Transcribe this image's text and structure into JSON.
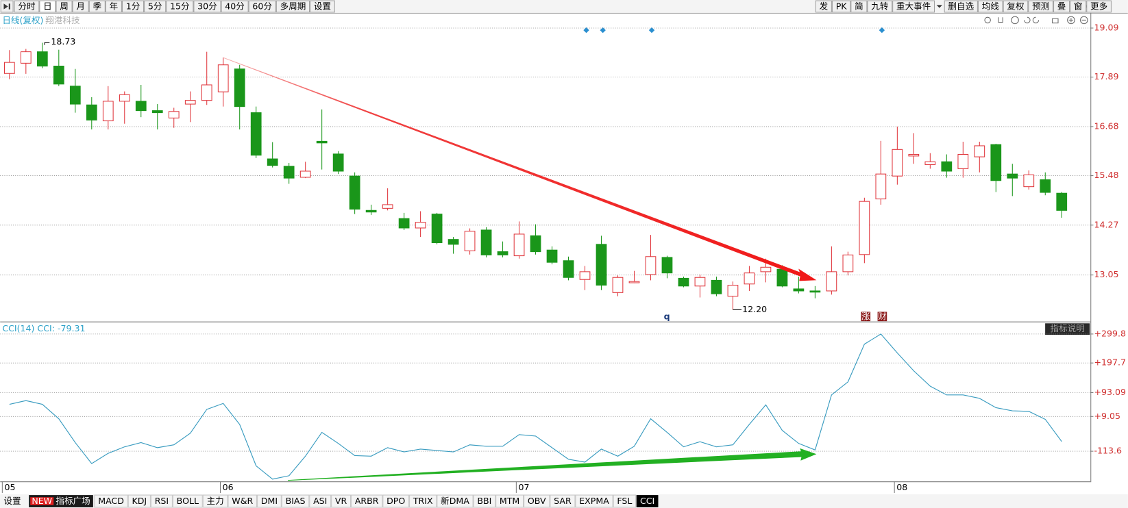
{
  "toolbar": {
    "left": [
      "分时",
      "日",
      "周",
      "月",
      "季",
      "年",
      "1分",
      "5分",
      "15分",
      "30分",
      "40分",
      "60分",
      "多周期",
      "设置"
    ],
    "right": [
      "发",
      "PK",
      "简",
      "九转",
      "重大事件",
      "删自选",
      "均线",
      "复权",
      "预测",
      "叠",
      "窗",
      "更多"
    ]
  },
  "stock_label": {
    "mode": "日线(复权)",
    "name": "翔港科技"
  },
  "indicator_button": "指标说明",
  "markers": {
    "q": "q",
    "events": [
      "涨",
      "财"
    ]
  },
  "tabs": {
    "settings": "设置",
    "new_badge": "NEW",
    "square": "指标广场",
    "items": [
      "MACD",
      "KDJ",
      "RSI",
      "BOLL",
      "主力",
      "W&R",
      "DMI",
      "BIAS",
      "ASI",
      "VR",
      "ARBR",
      "DPO",
      "TRIX",
      "新DMA",
      "BBI",
      "MTM",
      "OBV",
      "SAR",
      "EXPMA",
      "FSL",
      "CCI"
    ]
  },
  "chart_data": [
    {
      "type": "candlestick",
      "up_color": "#e0363c",
      "down_color": "#1a961a",
      "grid": true,
      "open": [
        17.98,
        18.23,
        18.51,
        18.16,
        17.67,
        17.21,
        16.82,
        17.3,
        17.3,
        17.07,
        16.89,
        17.23,
        17.32,
        17.53,
        18.09,
        17.02,
        15.89,
        15.71,
        15.44,
        16.32,
        16.01,
        15.47,
        14.63,
        14.68,
        14.43,
        14.2,
        14.54,
        13.92,
        13.64,
        14.15,
        13.62,
        13.52,
        14.01,
        13.66,
        13.4,
        12.94,
        13.8,
        12.62,
        12.86,
        13.06,
        13.48,
        12.97,
        12.78,
        12.92,
        12.53,
        12.83,
        13.13,
        13.19,
        12.71,
        12.66,
        12.66,
        13.13,
        13.55,
        14.91,
        15.47,
        15.96,
        15.75,
        15.82,
        15.65,
        15.94,
        16.24,
        15.52,
        15.21,
        15.38,
        15.05
      ],
      "close": [
        18.25,
        18.51,
        18.16,
        17.72,
        17.23,
        16.84,
        17.3,
        17.46,
        17.07,
        17.02,
        17.05,
        17.32,
        17.7,
        18.19,
        17.17,
        15.98,
        15.73,
        15.42,
        15.59,
        16.28,
        15.59,
        14.66,
        14.59,
        14.77,
        14.2,
        14.34,
        13.84,
        13.8,
        14.12,
        13.54,
        13.54,
        14.05,
        13.62,
        13.36,
        12.99,
        13.13,
        12.8,
        12.99,
        12.89,
        13.5,
        13.1,
        12.78,
        12.99,
        12.59,
        12.8,
        13.1,
        13.24,
        12.78,
        12.66,
        12.63,
        13.13,
        13.54,
        14.85,
        15.52,
        16.12,
        16.0,
        15.82,
        15.59,
        16.0,
        16.21,
        15.36,
        15.42,
        15.5,
        15.07,
        14.63
      ],
      "high": [
        18.55,
        18.58,
        18.73,
        18.56,
        18.09,
        17.4,
        17.67,
        17.54,
        17.7,
        17.23,
        17.14,
        17.54,
        18.51,
        18.37,
        18.19,
        17.17,
        16.3,
        15.79,
        15.82,
        17.1,
        16.08,
        15.56,
        14.77,
        15.17,
        14.57,
        14.61,
        14.57,
        13.98,
        14.19,
        14.22,
        13.87,
        14.36,
        14.29,
        13.75,
        13.5,
        13.27,
        14.01,
        13.04,
        13.15,
        14.03,
        13.52,
        13.01,
        13.06,
        13.01,
        12.89,
        13.27,
        13.45,
        13.29,
        13.01,
        12.78,
        13.75,
        13.62,
        14.94,
        16.33,
        16.68,
        16.52,
        16.03,
        16.0,
        16.31,
        16.31,
        16.26,
        15.77,
        15.61,
        15.56,
        15.08
      ],
      "low": [
        17.84,
        17.97,
        18.11,
        17.67,
        17.02,
        16.61,
        16.61,
        16.75,
        16.91,
        16.61,
        16.65,
        16.79,
        17.21,
        17.17,
        16.61,
        15.91,
        15.68,
        15.28,
        15.42,
        15.63,
        15.52,
        14.54,
        14.52,
        14.63,
        14.15,
        13.98,
        13.8,
        13.57,
        13.55,
        13.48,
        13.48,
        13.45,
        13.55,
        13.31,
        12.92,
        12.68,
        12.68,
        12.53,
        12.85,
        12.92,
        12.97,
        12.75,
        12.5,
        12.53,
        12.2,
        12.66,
        12.87,
        12.75,
        12.6,
        12.48,
        12.57,
        13.04,
        13.34,
        14.77,
        15.26,
        15.77,
        15.65,
        15.43,
        15.43,
        15.56,
        15.08,
        14.98,
        15.14,
        15.0,
        14.45
      ],
      "high_label": 18.73,
      "low_label": {
        "value": 12.2,
        "label": "12.20"
      },
      "ylim": [
        11.92,
        19.46
      ],
      "yticks": [
        19.09,
        17.89,
        16.68,
        15.48,
        14.27,
        13.05
      ]
    },
    {
      "type": "line",
      "title": "CCI(14) CCI: -79.31",
      "categories": [
        "05",
        null,
        null,
        null,
        null,
        null,
        null,
        null,
        null,
        null,
        null,
        null,
        null,
        "06",
        null,
        null,
        null,
        null,
        null,
        null,
        null,
        null,
        null,
        null,
        null,
        null,
        null,
        null,
        null,
        null,
        null,
        "07",
        null,
        null,
        null,
        null,
        null,
        null,
        null,
        null,
        null,
        null,
        null,
        null,
        null,
        null,
        null,
        null,
        null,
        null,
        null,
        null,
        null,
        null,
        "08",
        null,
        null,
        null,
        null,
        null,
        null,
        null,
        null,
        null,
        null
      ],
      "series": [
        {
          "name": "CCI",
          "color": "#3a9cc0",
          "values": [
            52,
            65,
            52,
            1,
            -83,
            -157,
            -121,
            -98,
            -83,
            -101,
            -91,
            -50,
            34,
            55,
            -19,
            -165,
            -212,
            -200,
            -131,
            -47,
            -86,
            -129,
            -131,
            -101,
            -116,
            -106,
            -111,
            -116,
            -91,
            -96,
            -96,
            -55,
            -60,
            -101,
            -142,
            -152,
            -106,
            -131,
            -96,
            1,
            -47,
            -98,
            -80,
            -98,
            -91,
            -19,
            50,
            -40,
            -86,
            -109,
            85,
            131,
            264,
            299.8,
            233,
            170,
            116,
            85,
            85,
            73,
            40,
            29,
            27,
            -1,
            -79.31
          ]
        }
      ],
      "grid": true,
      "ylim": [
        -220,
        340
      ],
      "yticks": [
        {
          "value": 299.8,
          "label": "+299.8"
        },
        {
          "value": 197.7,
          "label": "+197.7"
        },
        {
          "value": 93.09,
          "label": "+93.09"
        },
        {
          "value": 9.05,
          "label": "+9.05"
        },
        -113.6
      ]
    }
  ]
}
